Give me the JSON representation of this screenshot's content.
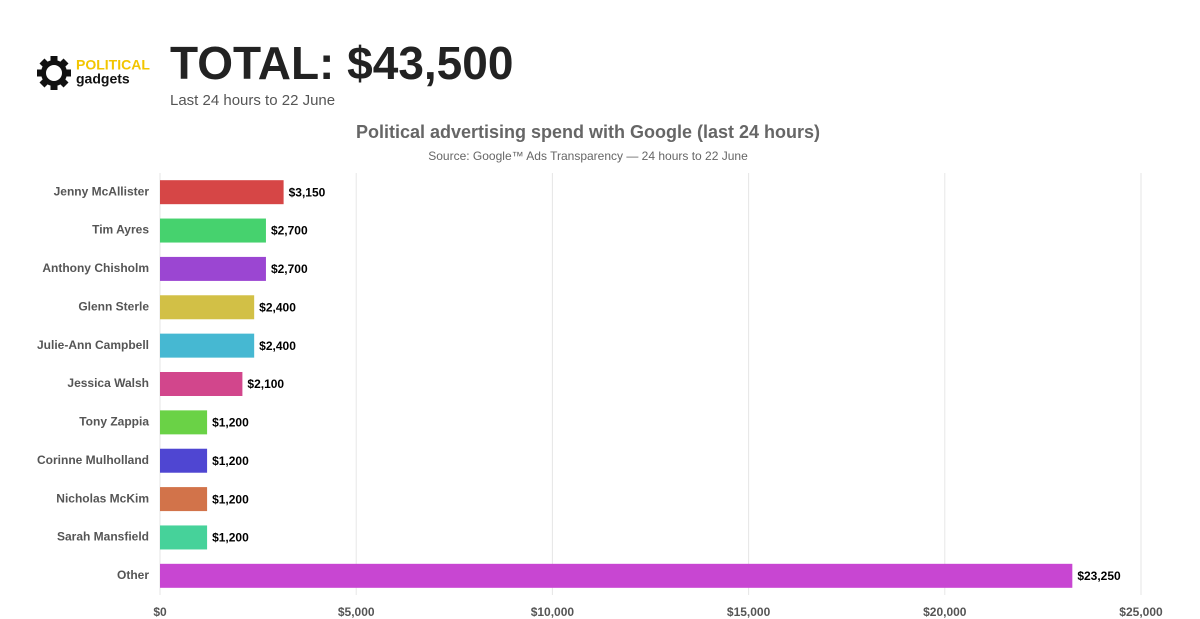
{
  "header": {
    "logo_top": "POLITICAL",
    "logo_bottom": "gadgets",
    "total": "TOTAL: $43,500",
    "period": "Last 24 hours to 22 June"
  },
  "chart_data": {
    "type": "bar",
    "orientation": "horizontal",
    "title": "Political advertising spend with Google (last 24 hours)",
    "subtitle": "Source: Google™ Ads Transparency — 24 hours to 22 June",
    "categories": [
      "Jenny McAllister",
      "Tim Ayres",
      "Anthony Chisholm",
      "Glenn Sterle",
      "Julie-Ann Campbell",
      "Jessica Walsh",
      "Tony Zappia",
      "Corinne Mulholland",
      "Nicholas McKim",
      "Sarah Mansfield",
      "Other"
    ],
    "values": [
      3150,
      2700,
      2700,
      2400,
      2400,
      2100,
      1200,
      1200,
      1200,
      1200,
      23250
    ],
    "value_labels": [
      "$3,150",
      "$2,700",
      "$2,700",
      "$2,400",
      "$2,400",
      "$2,100",
      "$1,200",
      "$1,200",
      "$1,200",
      "$1,200",
      "$23,250"
    ],
    "colors": [
      "#d64646",
      "#46d26e",
      "#9b46d2",
      "#d2c046",
      "#46b8d2",
      "#d2468c",
      "#6ad246",
      "#4f46d2",
      "#d2734a",
      "#46d29a",
      "#c846d2"
    ],
    "xlim": [
      0,
      25000
    ],
    "xticks": [
      {
        "value": 0,
        "label": "$0"
      },
      {
        "value": 5000,
        "label": "$5,000"
      },
      {
        "value": 10000,
        "label": "$10,000"
      },
      {
        "value": 15000,
        "label": "$15,000"
      },
      {
        "value": 20000,
        "label": "$20,000"
      },
      {
        "value": 25000,
        "label": "$25,000"
      }
    ],
    "grid": true
  }
}
